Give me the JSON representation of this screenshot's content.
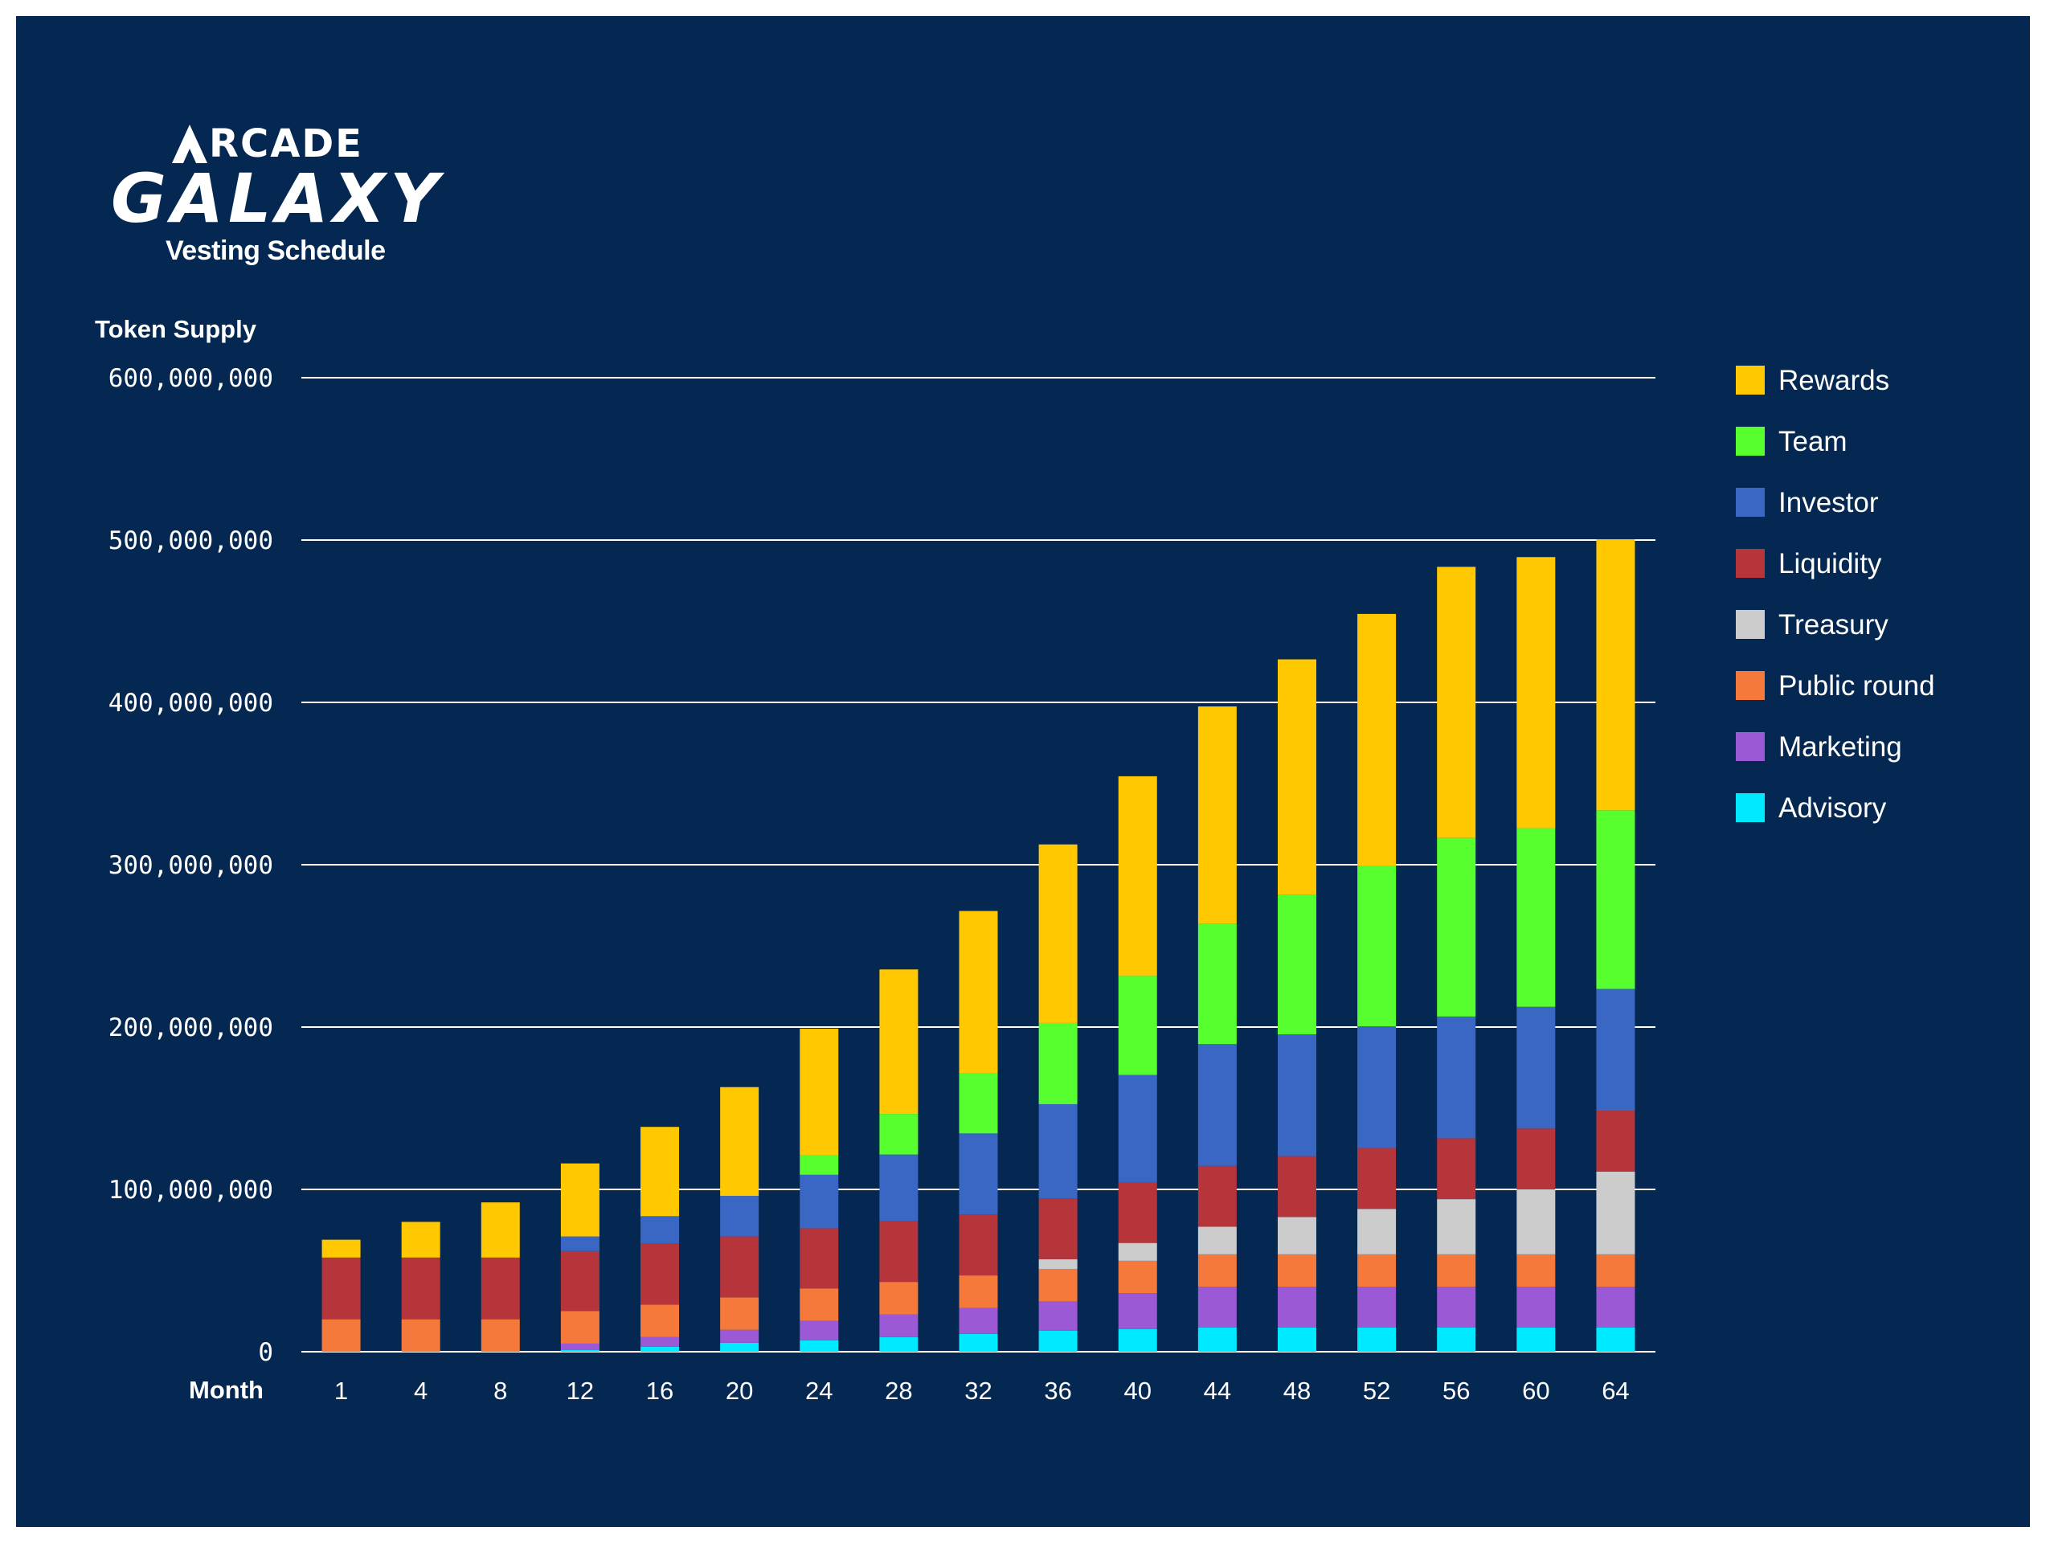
{
  "logo": {
    "brand_top": "RCADE",
    "brand_main": "GALAXY",
    "subtitle": "Vesting Schedule"
  },
  "colors": {
    "background": "#052853",
    "frame": "#ffffff",
    "text": "#ffffff"
  },
  "chart_data": {
    "type": "bar",
    "stacked": true,
    "title": "Vesting Schedule",
    "ylabel": "Token Supply",
    "xlabel": "Month",
    "ylim": [
      0,
      600000000
    ],
    "y_ticks": [
      0,
      100000000,
      200000000,
      300000000,
      400000000,
      500000000,
      600000000
    ],
    "y_tick_labels": [
      "0",
      "100,000,000",
      "200,000,000",
      "300,000,000",
      "400,000,000",
      "500,000,000",
      "600,000,000"
    ],
    "grid": true,
    "legend_position": "right",
    "categories": [
      "1",
      "4",
      "8",
      "12",
      "16",
      "20",
      "24",
      "28",
      "32",
      "36",
      "40",
      "44",
      "48",
      "52",
      "56",
      "60",
      "64"
    ],
    "series": [
      {
        "name": "Advisory",
        "color": "#00EAFF",
        "values": [
          0,
          0,
          0,
          1000000,
          3000000,
          5500000,
          7000000,
          9000000,
          11000000,
          13000000,
          14000000,
          15000000,
          15000000,
          15000000,
          15000000,
          15000000,
          15000000
        ]
      },
      {
        "name": "Marketing",
        "color": "#9B59D6",
        "values": [
          0,
          0,
          0,
          4000000,
          6000000,
          8000000,
          12000000,
          14000000,
          16000000,
          18000000,
          22000000,
          25000000,
          25000000,
          25000000,
          25000000,
          25000000,
          25000000
        ]
      },
      {
        "name": "Public round",
        "color": "#F5793A",
        "values": [
          20000000,
          20000000,
          20000000,
          20000000,
          20000000,
          20000000,
          20000000,
          20000000,
          20000000,
          20000000,
          20000000,
          20000000,
          20000000,
          20000000,
          20000000,
          20000000,
          20000000
        ]
      },
      {
        "name": "Treasury",
        "color": "#CCCCCC",
        "values": [
          0,
          0,
          0,
          0,
          0,
          0,
          0,
          0,
          0,
          6000000,
          11000000,
          17000000,
          23000000,
          28000000,
          34000000,
          40000000,
          51000000
        ]
      },
      {
        "name": "Liquidity",
        "color": "#B5353A",
        "values": [
          38000000,
          38000000,
          38000000,
          37000000,
          37500000,
          37500000,
          37000000,
          37500000,
          37500000,
          37500000,
          37500000,
          37500000,
          37500000,
          37500000,
          37500000,
          37500000,
          37500000
        ]
      },
      {
        "name": "Investor",
        "color": "#3A67C4",
        "values": [
          0,
          0,
          0,
          9000000,
          17000000,
          25000000,
          33000000,
          41000000,
          50000000,
          58000000,
          66000000,
          75000000,
          75000000,
          75000000,
          75000000,
          75000000,
          75000000
        ]
      },
      {
        "name": "Team",
        "color": "#58FF2E",
        "values": [
          0,
          0,
          0,
          0,
          0,
          0,
          12000000,
          25000000,
          37000000,
          50000000,
          61000000,
          74000000,
          86000000,
          99000000,
          110000000,
          110000000,
          110000000
        ]
      },
      {
        "name": "Rewards",
        "color": "#FFC800",
        "values": [
          11000000,
          22000000,
          34000000,
          45000000,
          55000000,
          67000000,
          78000000,
          89000000,
          100000000,
          110000000,
          123000000,
          134000000,
          145000000,
          155000000,
          167000000,
          167000000,
          167000000
        ]
      }
    ]
  }
}
